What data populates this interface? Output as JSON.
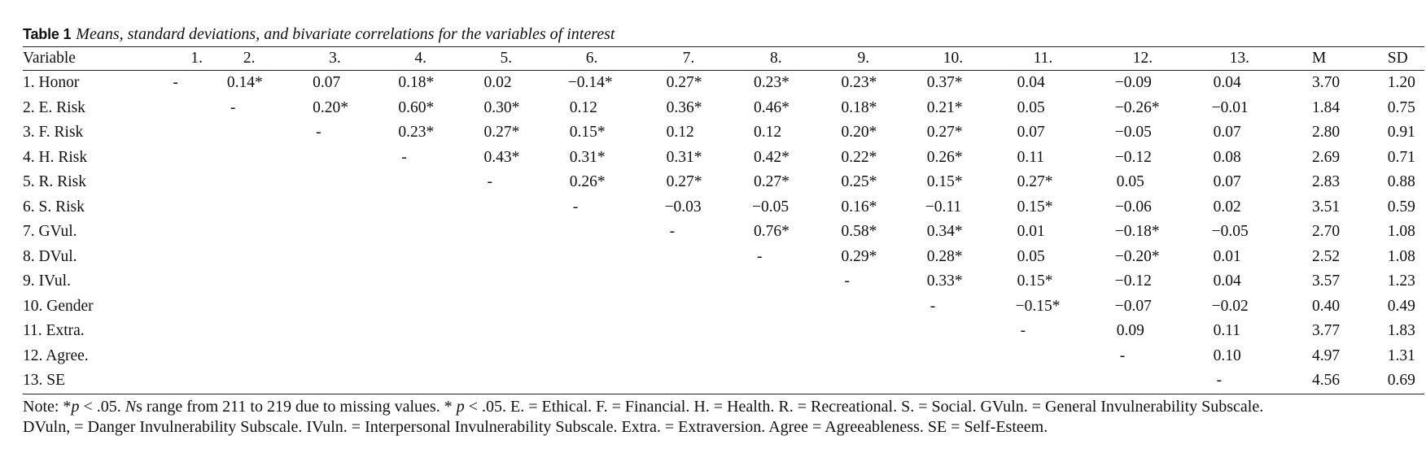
{
  "caption": {
    "label": "Table 1",
    "title": "Means, standard deviations, and bivariate correlations for the variables of interest"
  },
  "columns": [
    "Variable",
    "1.",
    "2.",
    "3.",
    "4.",
    "5.",
    "6.",
    "7.",
    "8.",
    "9.",
    "10.",
    "11.",
    "12.",
    "13.",
    "M",
    "SD"
  ],
  "rows": [
    [
      "1. Honor",
      "-",
      "0.14*",
      "0.07",
      "0.18*",
      "0.02",
      "−0.14*",
      "0.27*",
      "0.23*",
      "0.23*",
      "0.37*",
      "0.04",
      "−0.09",
      "0.04",
      "3.70",
      "1.20"
    ],
    [
      "2. E. Risk",
      "",
      "-",
      "0.20*",
      "0.60*",
      "0.30*",
      "0.12",
      "0.36*",
      "0.46*",
      "0.18*",
      "0.21*",
      "0.05",
      "−0.26*",
      "−0.01",
      "1.84",
      "0.75"
    ],
    [
      "3. F. Risk",
      "",
      "",
      "-",
      "0.23*",
      "0.27*",
      "0.15*",
      "0.12",
      "0.12",
      "0.20*",
      "0.27*",
      "0.07",
      "−0.05",
      "0.07",
      "2.80",
      "0.91"
    ],
    [
      "4. H. Risk",
      "",
      "",
      "",
      "-",
      "0.43*",
      "0.31*",
      "0.31*",
      "0.42*",
      "0.22*",
      "0.26*",
      "0.11",
      "−0.12",
      "0.08",
      "2.69",
      "0.71"
    ],
    [
      "5. R. Risk",
      "",
      "",
      "",
      "",
      "-",
      "0.26*",
      "0.27*",
      "0.27*",
      "0.25*",
      "0.15*",
      "0.27*",
      "0.05",
      "0.07",
      "2.83",
      "0.88"
    ],
    [
      "6. S. Risk",
      "",
      "",
      "",
      "",
      "",
      "-",
      "−0.03",
      "−0.05",
      "0.16*",
      "−0.11",
      "0.15*",
      "−0.06",
      "0.02",
      "3.51",
      "0.59"
    ],
    [
      "7. GVul.",
      "",
      "",
      "",
      "",
      "",
      "",
      "-",
      "0.76*",
      "0.58*",
      "0.34*",
      "0.01",
      "−0.18*",
      "−0.05",
      "2.70",
      "1.08"
    ],
    [
      "8. DVul.",
      "",
      "",
      "",
      "",
      "",
      "",
      "",
      "-",
      "0.29*",
      "0.28*",
      "0.05",
      "−0.20*",
      "0.01",
      "2.52",
      "1.08"
    ],
    [
      "9. IVul.",
      "",
      "",
      "",
      "",
      "",
      "",
      "",
      "",
      "-",
      "0.33*",
      "0.15*",
      "−0.12",
      "0.04",
      "3.57",
      "1.23"
    ],
    [
      "10. Gender",
      "",
      "",
      "",
      "",
      "",
      "",
      "",
      "",
      "",
      "-",
      "−0.15*",
      "−0.07",
      "−0.02",
      "0.40",
      "0.49"
    ],
    [
      "11. Extra.",
      "",
      "",
      "",
      "",
      "",
      "",
      "",
      "",
      "",
      "",
      "-",
      "0.09",
      "0.11",
      "3.77",
      "1.83"
    ],
    [
      "12. Agree.",
      "",
      "",
      "",
      "",
      "",
      "",
      "",
      "",
      "",
      "",
      "",
      "-",
      "0.10",
      "4.97",
      "1.31"
    ],
    [
      "13. SE",
      "",
      "",
      "",
      "",
      "",
      "",
      "",
      "",
      "",
      "",
      "",
      "",
      "-",
      "4.56",
      "0.69"
    ]
  ],
  "note": {
    "prefix": "Note: *",
    "p1": "p",
    "mid1": " < .05. ",
    "ns": "N",
    "mid2": "s range from 211 to 219 due to missing values. * ",
    "p2": "p",
    "line1_rest": " < .05. E. = Ethical. F. = Financial. H. = Health. R. = Recreational. S. = Social. GVuln. = General Invulnerability Subscale.",
    "line2": "DVuln, = Danger Invulnerability Subscale. IVuln. = Interpersonal Invulnerability Subscale. Extra. = Extraversion. Agree = Agreeableness. SE = Self-Esteem."
  }
}
